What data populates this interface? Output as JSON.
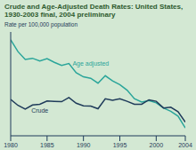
{
  "chart_data": {
    "type": "line",
    "title": "Crude and Age-Adjusted Death Rates: United States, 1930-2003 final, 2004 preliminary",
    "y_label": "Rate per 100,000 population",
    "x": [
      1980,
      1981,
      1982,
      1983,
      1984,
      1985,
      1986,
      1987,
      1988,
      1989,
      1990,
      1991,
      1992,
      1993,
      1994,
      1995,
      1996,
      1997,
      1998,
      1999,
      2000,
      2001,
      2002,
      2003,
      2004
    ],
    "series": [
      {
        "name": "Age adjusted",
        "color": "#2aa59a",
        "values": [
          1039,
          1007,
          986,
          989,
          982,
          988,
          978,
          970,
          975,
          950,
          939,
          935,
          922,
          942,
          928,
          918,
          903,
          880,
          871,
          875,
          869,
          855,
          846,
          833,
          801
        ]
      },
      {
        "name": "Crude",
        "color": "#1f3b5a",
        "values": [
          878,
          862,
          852,
          863,
          865,
          874,
          873,
          872,
          883,
          868,
          861,
          860,
          853,
          880,
          876,
          880,
          873,
          865,
          865,
          877,
          873,
          855,
          857,
          845,
          817
        ]
      }
    ],
    "annotations": [
      {
        "text": "Age adjusted",
        "x": 1991,
        "y": 975
      },
      {
        "text": "Crude",
        "x": 1984,
        "y": 848
      }
    ],
    "xlim": [
      1980,
      2004
    ],
    "xticks": [
      1980,
      1985,
      1990,
      1995,
      2000,
      2004
    ],
    "ylim": [
      780,
      1060
    ],
    "tick_labels": "x",
    "grid": false
  }
}
